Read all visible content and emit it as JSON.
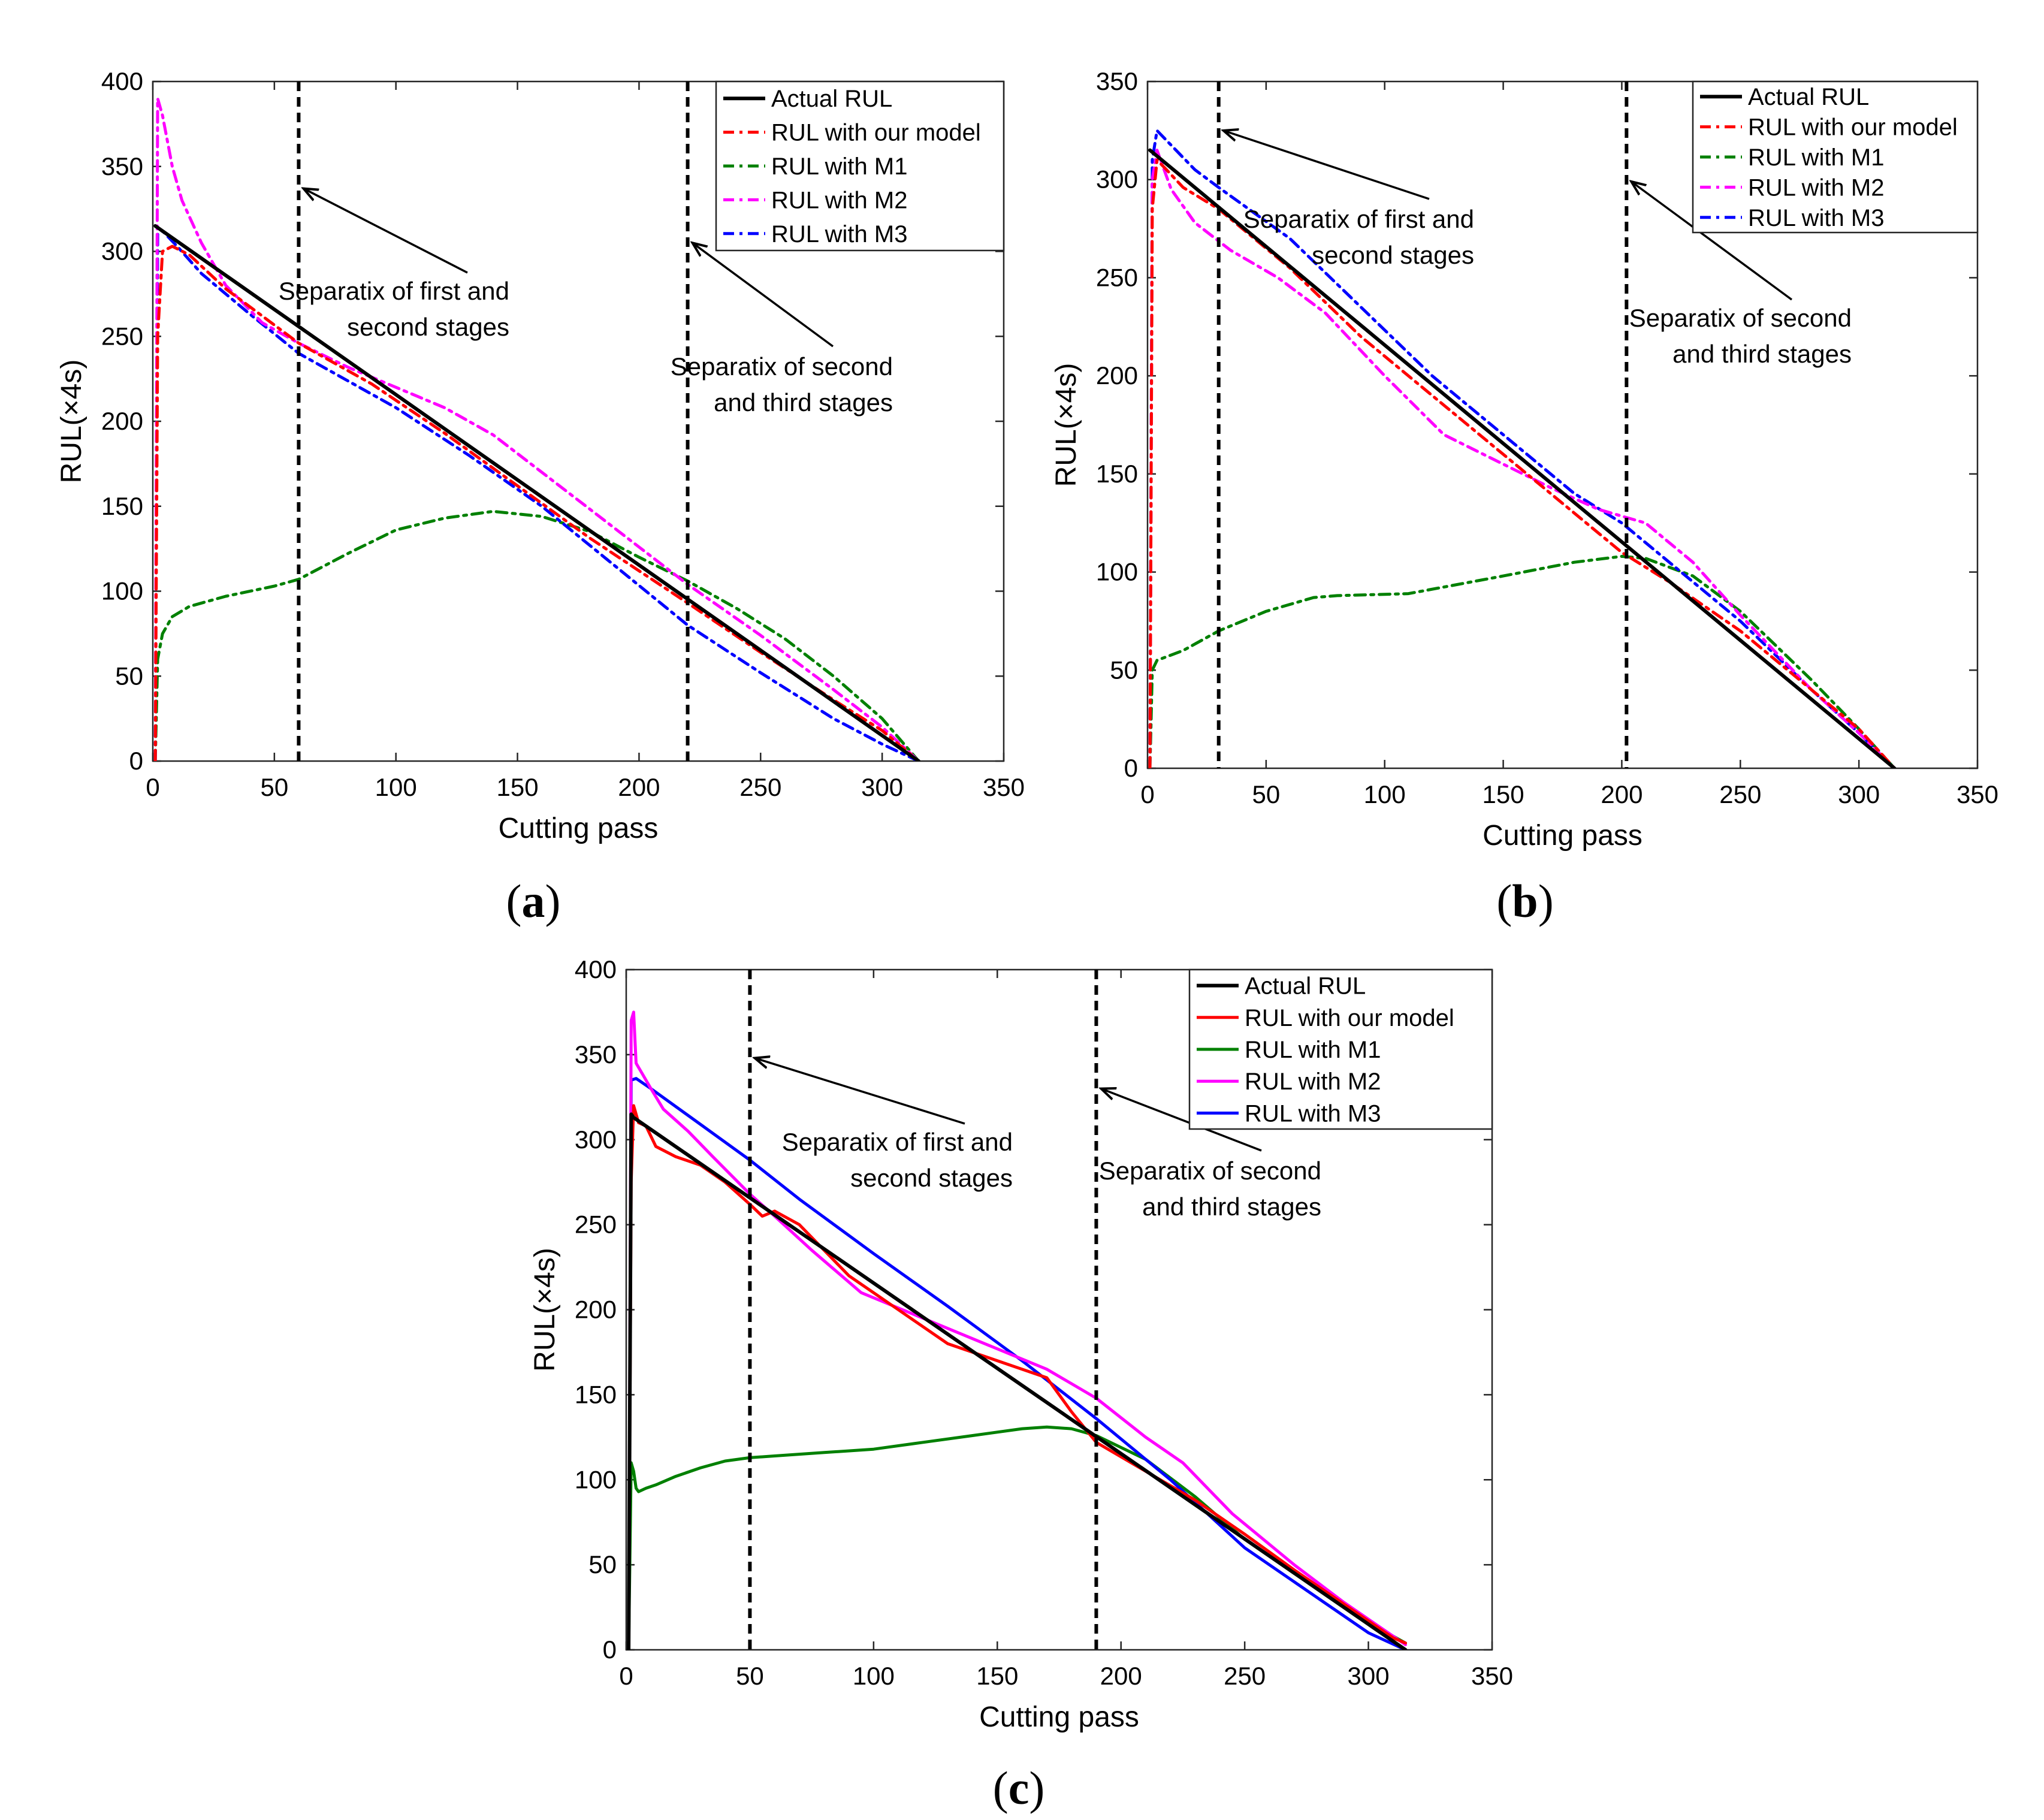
{
  "colors": {
    "actual": "#000000",
    "our_model": "#ff0000",
    "m1": "#008000",
    "m2": "#ff00ff",
    "m3": "#0000ff",
    "separator": "#000000"
  },
  "chart_data": [
    {
      "id": "a",
      "caption": "a",
      "type": "line",
      "xlabel": "Cutting pass",
      "ylabel": "RUL(×4s)",
      "xlim": [
        0,
        350
      ],
      "ylim": [
        0,
        400
      ],
      "xticks": [
        0,
        50,
        100,
        150,
        200,
        250,
        300,
        350
      ],
      "yticks": [
        0,
        50,
        100,
        150,
        200,
        250,
        300,
        350,
        400
      ],
      "legend_position": "top-right",
      "line_style": "dashdot",
      "separators": [
        60,
        220
      ],
      "annotations": [
        {
          "lines": [
            "Separatix of first and",
            "second stages"
          ],
          "points_to": [
            61,
            337
          ]
        },
        {
          "lines": [
            "Separatix of second",
            "and third stages"
          ],
          "points_to": [
            221,
            305
          ]
        }
      ],
      "series": [
        {
          "name": "Actual RUL",
          "key": "actual",
          "x": [
            1,
            315
          ],
          "y": [
            315,
            0
          ]
        },
        {
          "name": "RUL with our model",
          "key": "our_model",
          "x": [
            1,
            2,
            4,
            8,
            15,
            30,
            60,
            90,
            120,
            150,
            180,
            200,
            220,
            250,
            280,
            300,
            315
          ],
          "y": [
            0,
            250,
            300,
            303,
            298,
            278,
            246,
            222,
            193,
            162,
            131,
            112,
            93,
            64,
            36,
            18,
            0
          ]
        },
        {
          "name": "RUL with M1",
          "key": "m1",
          "x": [
            1,
            2,
            4,
            8,
            15,
            30,
            50,
            60,
            80,
            100,
            120,
            140,
            160,
            180,
            200,
            220,
            240,
            260,
            280,
            300,
            315
          ],
          "y": [
            0,
            60,
            75,
            85,
            91,
            97,
            103,
            107,
            122,
            136,
            143,
            147,
            144,
            135,
            120,
            106,
            90,
            72,
            50,
            25,
            0
          ]
        },
        {
          "name": "RUL with M2",
          "key": "m2",
          "x": [
            1,
            2,
            4,
            8,
            12,
            20,
            30,
            45,
            60,
            80,
            100,
            120,
            140,
            160,
            180,
            200,
            220,
            250,
            280,
            300,
            315
          ],
          "y": [
            0,
            390,
            380,
            350,
            330,
            305,
            280,
            258,
            246,
            232,
            220,
            208,
            192,
            170,
            148,
            126,
            104,
            74,
            42,
            20,
            0
          ]
        },
        {
          "name": "RUL with M3",
          "key": "m3",
          "x": [
            1,
            2,
            4,
            10,
            20,
            40,
            60,
            80,
            100,
            130,
            160,
            190,
            220,
            250,
            280,
            300,
            315
          ],
          "y": [
            0,
            310,
            312,
            303,
            287,
            263,
            240,
            224,
            208,
            180,
            150,
            115,
            80,
            52,
            25,
            10,
            0
          ]
        }
      ]
    },
    {
      "id": "b",
      "caption": "b",
      "type": "line",
      "xlabel": "Cutting pass",
      "ylabel": "RUL(×4s)",
      "xlim": [
        0,
        350
      ],
      "ylim": [
        0,
        350
      ],
      "xticks": [
        0,
        50,
        100,
        150,
        200,
        250,
        300,
        350
      ],
      "yticks": [
        0,
        50,
        100,
        150,
        200,
        250,
        300,
        350
      ],
      "legend_position": "top-right",
      "line_style": "dashdot",
      "separators": [
        30,
        202
      ],
      "annotations": [
        {
          "lines": [
            "Separatix of first and",
            "second stages"
          ],
          "points_to": [
            31,
            325
          ]
        },
        {
          "lines": [
            "Separatix of second",
            "and third stages"
          ],
          "points_to": [
            203,
            299
          ]
        }
      ],
      "series": [
        {
          "name": "Actual RUL",
          "key": "actual",
          "x": [
            1,
            315
          ],
          "y": [
            315,
            0
          ]
        },
        {
          "name": "RUL with our model",
          "key": "our_model",
          "x": [
            1,
            2,
            4,
            8,
            15,
            30,
            60,
            90,
            120,
            150,
            180,
            200,
            220,
            250,
            280,
            300,
            315
          ],
          "y": [
            0,
            285,
            310,
            305,
            296,
            285,
            255,
            220,
            190,
            160,
            130,
            110,
            95,
            70,
            40,
            20,
            0
          ]
        },
        {
          "name": "RUL with M1",
          "key": "m1",
          "x": [
            1,
            2,
            4,
            15,
            30,
            50,
            70,
            80,
            110,
            150,
            180,
            200,
            210,
            230,
            250,
            280,
            300,
            315
          ],
          "y": [
            0,
            50,
            55,
            60,
            70,
            80,
            87,
            88,
            89,
            98,
            105,
            108,
            107,
            98,
            80,
            45,
            20,
            0
          ]
        },
        {
          "name": "RUL with M2",
          "key": "m2",
          "x": [
            1,
            2,
            4,
            10,
            20,
            35,
            55,
            75,
            100,
            125,
            150,
            170,
            190,
            210,
            230,
            250,
            280,
            300,
            315
          ],
          "y": [
            0,
            300,
            315,
            295,
            278,
            264,
            250,
            232,
            200,
            170,
            155,
            143,
            132,
            125,
            105,
            78,
            40,
            18,
            0
          ]
        },
        {
          "name": "RUL with M3",
          "key": "m3",
          "x": [
            1,
            2,
            4,
            20,
            30,
            60,
            90,
            120,
            150,
            180,
            200,
            220,
            250,
            280,
            300,
            315
          ],
          "y": [
            0,
            310,
            325,
            305,
            296,
            270,
            235,
            200,
            170,
            140,
            125,
            105,
            75,
            40,
            18,
            0
          ]
        }
      ]
    },
    {
      "id": "c",
      "caption": "c",
      "type": "line",
      "xlabel": "Cutting pass",
      "ylabel": "RUL(×4s)",
      "xlim": [
        0,
        350
      ],
      "ylim": [
        0,
        400
      ],
      "xticks": [
        0,
        50,
        100,
        150,
        200,
        250,
        300,
        350
      ],
      "yticks": [
        0,
        50,
        100,
        150,
        200,
        250,
        300,
        350,
        400
      ],
      "legend_position": "top-right",
      "line_style": "solid",
      "separators": [
        50,
        190
      ],
      "annotations": [
        {
          "lines": [
            "Separatix of first and",
            "second stages"
          ],
          "points_to": [
            51,
            348
          ]
        },
        {
          "lines": [
            "Separatix of second",
            "and third stages"
          ],
          "points_to": [
            191,
            330
          ]
        }
      ],
      "series": [
        {
          "name": "Actual RUL",
          "key": "actual",
          "x": [
            1,
            2,
            3,
            315
          ],
          "y": [
            0,
            315,
            313,
            0
          ]
        },
        {
          "name": "RUL with our model",
          "key": "our_model",
          "x": [
            1,
            2,
            3,
            5,
            8,
            12,
            20,
            30,
            40,
            50,
            55,
            60,
            70,
            90,
            110,
            130,
            150,
            170,
            180,
            190,
            210,
            230,
            250,
            270,
            290,
            310,
            315
          ],
          "y": [
            0,
            275,
            320,
            310,
            308,
            296,
            290,
            285,
            275,
            262,
            255,
            258,
            250,
            220,
            200,
            180,
            170,
            160,
            140,
            122,
            105,
            88,
            68,
            47,
            27,
            7,
            4
          ]
        },
        {
          "name": "RUL with M1",
          "key": "m1",
          "x": [
            1,
            2,
            3,
            4,
            5,
            8,
            12,
            20,
            30,
            40,
            50,
            60,
            80,
            100,
            120,
            140,
            160,
            170,
            180,
            190,
            210,
            230,
            250,
            270,
            290,
            310,
            315
          ],
          "y": [
            0,
            110,
            105,
            95,
            93,
            95,
            97,
            102,
            107,
            111,
            113,
            114,
            116,
            118,
            122,
            126,
            130,
            131,
            130,
            126,
            112,
            90,
            65,
            45,
            25,
            8,
            4
          ]
        },
        {
          "name": "RUL with M2",
          "key": "m2",
          "x": [
            1,
            2,
            3,
            4,
            6,
            10,
            15,
            25,
            35,
            50,
            60,
            75,
            95,
            120,
            145,
            170,
            190,
            210,
            225,
            245,
            270,
            290,
            310,
            315
          ],
          "y": [
            0,
            370,
            375,
            345,
            340,
            330,
            318,
            305,
            290,
            268,
            255,
            235,
            210,
            195,
            180,
            165,
            148,
            125,
            110,
            80,
            50,
            28,
            8,
            3
          ]
        },
        {
          "name": "RUL with M3",
          "key": "m3",
          "x": [
            1,
            2,
            4,
            10,
            30,
            50,
            70,
            100,
            130,
            160,
            190,
            220,
            250,
            280,
            300,
            315
          ],
          "y": [
            0,
            335,
            336,
            330,
            309,
            288,
            265,
            233,
            202,
            170,
            136,
            100,
            60,
            30,
            10,
            0
          ]
        }
      ]
    }
  ]
}
